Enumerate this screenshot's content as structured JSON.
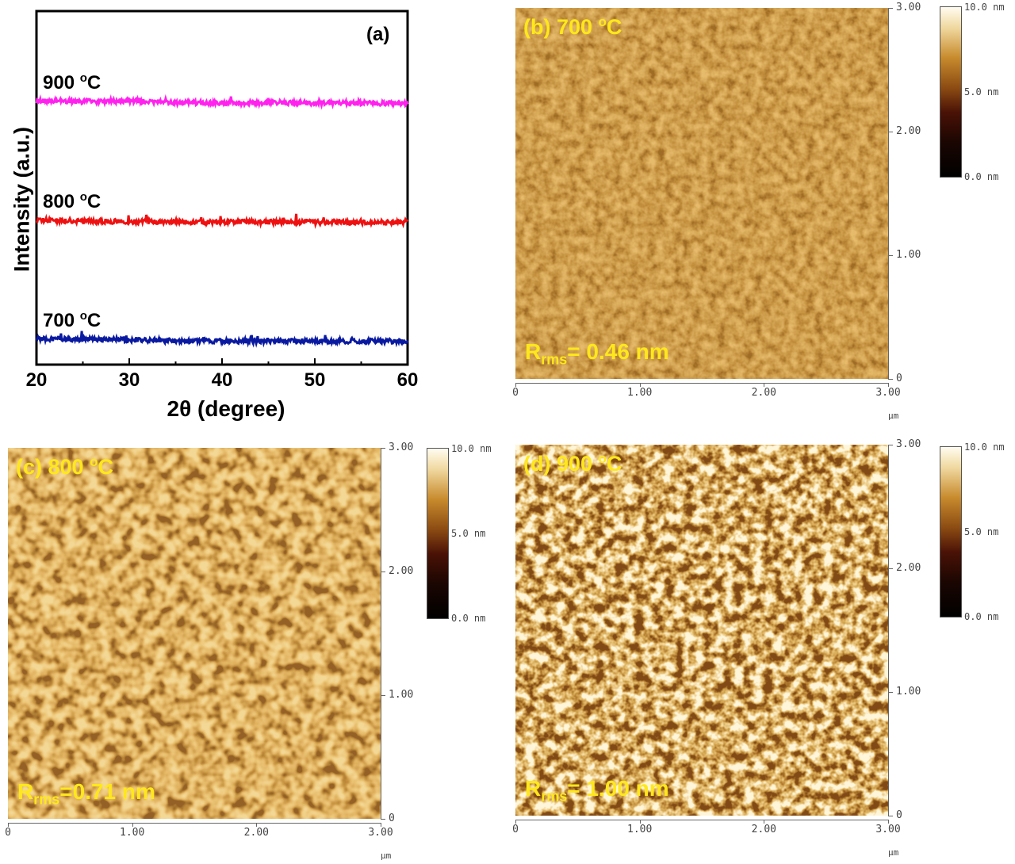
{
  "chart_data": [
    {
      "type": "line",
      "panel_label": "(a)",
      "xlabel": "2θ (degree)",
      "ylabel": "Intensity (a.u.)",
      "xlim": [
        20,
        60
      ],
      "xticks": [
        "20",
        "30",
        "40",
        "50",
        "60"
      ],
      "series": [
        {
          "name": "900 °C",
          "label_main": "900 ",
          "label_sup": "o",
          "label_unit": "C",
          "color": "#ff22ee",
          "offset": 2,
          "x": [
            20,
            25,
            30,
            35,
            40,
            45,
            50,
            55,
            60
          ],
          "values": [
            0.12,
            0.1,
            0.12,
            0.07,
            0.05,
            0.07,
            0.05,
            0.05,
            0.04
          ]
        },
        {
          "name": "800 °C",
          "label_main": "800 ",
          "label_sup": "o",
          "label_unit": "C",
          "color": "#ee1111",
          "offset": 1,
          "x": [
            20,
            25,
            30,
            35,
            40,
            45,
            50,
            55,
            60
          ],
          "values": [
            0.1,
            0.08,
            0.06,
            0.05,
            0.04,
            0.05,
            0.04,
            0.05,
            0.04
          ]
        },
        {
          "name": "700 °C",
          "label_main": "700 ",
          "label_sup": "o",
          "label_unit": "C",
          "color": "#0a1aa0",
          "offset": 0,
          "x": [
            20,
            25,
            30,
            35,
            40,
            45,
            50,
            55,
            60
          ],
          "values": [
            0.12,
            0.1,
            0.08,
            0.05,
            0.04,
            0.04,
            0.05,
            0.04,
            0.04
          ]
        }
      ]
    },
    {
      "type": "heatmap",
      "panel_label": "(b) 700 ",
      "title_sup": "o",
      "title_unit": "C",
      "rms_main": "R",
      "rms_sub": "rms",
      "rms_value": "= 0.46 nm",
      "axis_ticks": [
        "0",
        "1.00",
        "2.00",
        "3.00"
      ],
      "unit": "μm",
      "colorbar": [
        "10.0 nm",
        "5.0 nm",
        "0.0 nm"
      ]
    },
    {
      "type": "heatmap",
      "panel_label": "(c) 800 ",
      "title_sup": "o",
      "title_unit": "C",
      "rms_main": "R",
      "rms_sub": "rms",
      "rms_value": "=0.71 nm",
      "axis_ticks": [
        "0",
        "1.00",
        "2.00",
        "3.00"
      ],
      "unit": "μm",
      "colorbar": [
        "10.0 nm",
        "5.0 nm",
        "0.0 nm"
      ]
    },
    {
      "type": "heatmap",
      "panel_label": "(d) 900 ",
      "title_sup": "o",
      "title_unit": "C",
      "rms_main": "R",
      "rms_sub": "rms",
      "rms_value": "= 1.00 nm",
      "axis_ticks": [
        "0",
        "1.00",
        "2.00",
        "3.00"
      ],
      "unit": "μm",
      "colorbar": [
        "10.0 nm",
        "5.0 nm",
        "0.0 nm"
      ]
    }
  ]
}
